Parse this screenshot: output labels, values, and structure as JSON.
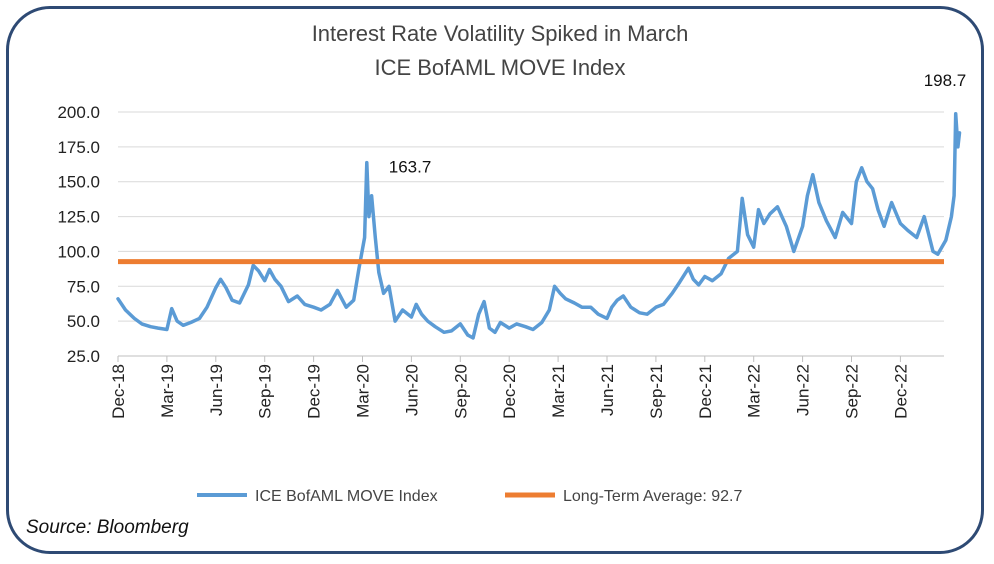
{
  "chart_data": {
    "type": "line",
    "title": "Interest Rate Volatility Spiked in March",
    "subtitle": "ICE BofAML MOVE Index",
    "xlabel": "",
    "ylabel": "",
    "ylim": [
      25,
      200
    ],
    "y_ticks": [
      "25.0",
      "50.0",
      "75.0",
      "100.0",
      "125.0",
      "150.0",
      "175.0",
      "200.0"
    ],
    "x_ticks": [
      "Dec-18",
      "Mar-19",
      "Jun-19",
      "Sep-19",
      "Dec-19",
      "Mar-20",
      "Jun-20",
      "Sep-20",
      "Dec-20",
      "Mar-21",
      "Jun-21",
      "Sep-21",
      "Dec-21",
      "Mar-22",
      "Jun-22",
      "Sep-22",
      "Dec-22"
    ],
    "grid": "horizontal",
    "legend_position": "bottom",
    "series": [
      {
        "name": "ICE BofAML MOVE Index",
        "color": "#5b9bd5",
        "points": [
          [
            "2018-12-01",
            66
          ],
          [
            "2018-12-15",
            58
          ],
          [
            "2019-01-01",
            52
          ],
          [
            "2019-01-15",
            48
          ],
          [
            "2019-02-01",
            46
          ],
          [
            "2019-02-15",
            45
          ],
          [
            "2019-03-01",
            44
          ],
          [
            "2019-03-10",
            59
          ],
          [
            "2019-03-20",
            50
          ],
          [
            "2019-04-01",
            47
          ],
          [
            "2019-04-15",
            49
          ],
          [
            "2019-05-01",
            52
          ],
          [
            "2019-05-15",
            60
          ],
          [
            "2019-06-01",
            74
          ],
          [
            "2019-06-10",
            80
          ],
          [
            "2019-06-20",
            74
          ],
          [
            "2019-07-01",
            65
          ],
          [
            "2019-07-15",
            63
          ],
          [
            "2019-08-01",
            76
          ],
          [
            "2019-08-10",
            90
          ],
          [
            "2019-08-20",
            86
          ],
          [
            "2019-09-01",
            79
          ],
          [
            "2019-09-10",
            87
          ],
          [
            "2019-09-20",
            80
          ],
          [
            "2019-10-01",
            75
          ],
          [
            "2019-10-15",
            64
          ],
          [
            "2019-11-01",
            68
          ],
          [
            "2019-11-15",
            62
          ],
          [
            "2019-12-01",
            60
          ],
          [
            "2019-12-15",
            58
          ],
          [
            "2020-01-01",
            62
          ],
          [
            "2020-01-15",
            72
          ],
          [
            "2020-02-01",
            60
          ],
          [
            "2020-02-15",
            65
          ],
          [
            "2020-02-25",
            88
          ],
          [
            "2020-03-05",
            110
          ],
          [
            "2020-03-09",
            163.7
          ],
          [
            "2020-03-13",
            125
          ],
          [
            "2020-03-18",
            140
          ],
          [
            "2020-03-25",
            110
          ],
          [
            "2020-04-01",
            85
          ],
          [
            "2020-04-10",
            70
          ],
          [
            "2020-04-20",
            75
          ],
          [
            "2020-05-01",
            50
          ],
          [
            "2020-05-15",
            58
          ],
          [
            "2020-06-01",
            53
          ],
          [
            "2020-06-10",
            62
          ],
          [
            "2020-06-20",
            55
          ],
          [
            "2020-07-01",
            50
          ],
          [
            "2020-07-15",
            46
          ],
          [
            "2020-08-01",
            42
          ],
          [
            "2020-08-15",
            43
          ],
          [
            "2020-09-01",
            48
          ],
          [
            "2020-09-15",
            40
          ],
          [
            "2020-09-25",
            38
          ],
          [
            "2020-10-05",
            55
          ],
          [
            "2020-10-15",
            64
          ],
          [
            "2020-10-25",
            45
          ],
          [
            "2020-11-05",
            42
          ],
          [
            "2020-11-15",
            49
          ],
          [
            "2020-12-01",
            45
          ],
          [
            "2020-12-15",
            48
          ],
          [
            "2021-01-01",
            46
          ],
          [
            "2021-01-15",
            44
          ],
          [
            "2021-02-01",
            49
          ],
          [
            "2021-02-15",
            58
          ],
          [
            "2021-02-25",
            75
          ],
          [
            "2021-03-05",
            70
          ],
          [
            "2021-03-15",
            66
          ],
          [
            "2021-04-01",
            63
          ],
          [
            "2021-04-15",
            60
          ],
          [
            "2021-05-01",
            60
          ],
          [
            "2021-05-15",
            55
          ],
          [
            "2021-06-01",
            52
          ],
          [
            "2021-06-10",
            60
          ],
          [
            "2021-06-20",
            65
          ],
          [
            "2021-07-01",
            68
          ],
          [
            "2021-07-15",
            60
          ],
          [
            "2021-08-01",
            56
          ],
          [
            "2021-08-15",
            55
          ],
          [
            "2021-09-01",
            60
          ],
          [
            "2021-09-15",
            62
          ],
          [
            "2021-10-01",
            70
          ],
          [
            "2021-10-15",
            78
          ],
          [
            "2021-11-01",
            88
          ],
          [
            "2021-11-10",
            80
          ],
          [
            "2021-11-20",
            76
          ],
          [
            "2021-12-01",
            82
          ],
          [
            "2021-12-15",
            79
          ],
          [
            "2022-01-01",
            84
          ],
          [
            "2022-01-15",
            95
          ],
          [
            "2022-02-01",
            100
          ],
          [
            "2022-02-10",
            138
          ],
          [
            "2022-02-20",
            112
          ],
          [
            "2022-03-01",
            103
          ],
          [
            "2022-03-10",
            130
          ],
          [
            "2022-03-20",
            120
          ],
          [
            "2022-04-01",
            127
          ],
          [
            "2022-04-15",
            132
          ],
          [
            "2022-05-01",
            118
          ],
          [
            "2022-05-15",
            100
          ],
          [
            "2022-06-01",
            118
          ],
          [
            "2022-06-10",
            140
          ],
          [
            "2022-06-20",
            155
          ],
          [
            "2022-07-01",
            135
          ],
          [
            "2022-07-15",
            122
          ],
          [
            "2022-08-01",
            110
          ],
          [
            "2022-08-15",
            128
          ],
          [
            "2022-09-01",
            120
          ],
          [
            "2022-09-10",
            150
          ],
          [
            "2022-09-20",
            160
          ],
          [
            "2022-09-30",
            150
          ],
          [
            "2022-10-10",
            145
          ],
          [
            "2022-10-20",
            130
          ],
          [
            "2022-11-01",
            118
          ],
          [
            "2022-11-15",
            135
          ],
          [
            "2022-12-01",
            120
          ],
          [
            "2022-12-15",
            115
          ],
          [
            "2023-01-01",
            110
          ],
          [
            "2023-01-15",
            125
          ],
          [
            "2023-02-01",
            100
          ],
          [
            "2023-02-10",
            98
          ],
          [
            "2023-02-25",
            108
          ],
          [
            "2023-03-05",
            125
          ],
          [
            "2023-03-10",
            140
          ],
          [
            "2023-03-13",
            198.7
          ],
          [
            "2023-03-17",
            175
          ],
          [
            "2023-03-20",
            185
          ]
        ]
      },
      {
        "name": "Long-Term Average: 92.7",
        "color": "#ed7d31",
        "points": [
          [
            "2018-12-01",
            92.7
          ],
          [
            "2023-03-20",
            92.7
          ]
        ]
      }
    ],
    "annotations": [
      {
        "text": "163.7",
        "date": "2020-03-09",
        "value": 163.7
      },
      {
        "text": "198.7",
        "date": "2023-03-13",
        "value": 198.7
      }
    ]
  },
  "source": "Source: Bloomberg"
}
